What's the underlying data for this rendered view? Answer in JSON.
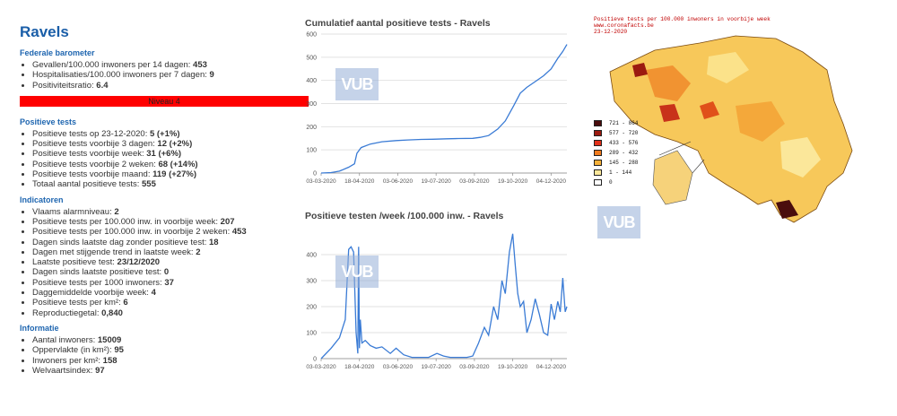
{
  "title": "Ravels",
  "watermark": "VUB",
  "federal": {
    "heading": "Federale barometer",
    "items": [
      {
        "label": "Gevallen/100.000 inwoners per 14 dagen: ",
        "value": "453"
      },
      {
        "label": "Hospitalisaties/100.000 inwoners per 7 dagen: ",
        "value": "9"
      },
      {
        "label": "Positiviteitsratio: ",
        "value": "6.4"
      }
    ],
    "niveau": "Niveau 4",
    "niveau_color": "#ff0000"
  },
  "positive_tests": {
    "heading": "Positieve tests",
    "items": [
      {
        "label": "Positieve tests op 23-12-2020: ",
        "value": "5 (+1%)"
      },
      {
        "label": "Positieve tests voorbije 3 dagen: ",
        "value": "12 (+2%)"
      },
      {
        "label": "Positieve tests voorbije week: ",
        "value": "31 (+6%)"
      },
      {
        "label": "Positieve tests voorbije 2 weken: ",
        "value": "68 (+14%)"
      },
      {
        "label": "Positieve tests voorbije maand: ",
        "value": "119 (+27%)"
      },
      {
        "label": "Totaal aantal positieve tests: ",
        "value": "555"
      }
    ]
  },
  "indicators": {
    "heading": "Indicatoren",
    "items": [
      {
        "label": "Vlaams alarmniveau: ",
        "value": "2"
      },
      {
        "label": "Positieve tests per 100.000 inw. in voorbije week: ",
        "value": "207"
      },
      {
        "label": "Positieve tests per 100.000 inw. in voorbije 2 weken: ",
        "value": "453"
      },
      {
        "label": "Dagen sinds laatste dag zonder positieve test: ",
        "value": "18"
      },
      {
        "label": "Dagen met stijgende trend in laatste week: ",
        "value": "2"
      },
      {
        "label": "Laatste positieve test: ",
        "value": "23/12/2020"
      },
      {
        "label": "Dagen sinds laatste positieve test: ",
        "value": "0"
      },
      {
        "label": "Positieve tests per 1000 inwoners: ",
        "value": "37"
      },
      {
        "label": "Daggemiddelde voorbije week: ",
        "value": "4"
      },
      {
        "label": "Positieve tests per km²: ",
        "value": "6"
      },
      {
        "label": "Reproductiegetal: ",
        "value": "0,840"
      }
    ]
  },
  "info": {
    "heading": "Informatie",
    "items": [
      {
        "label": "Aantal inwoners: ",
        "value": "15009"
      },
      {
        "label": "Oppervlakte (in km²): ",
        "value": "95"
      },
      {
        "label": "Inwoners per km²: ",
        "value": "158"
      },
      {
        "label": "Welvaartsindex: ",
        "value": "97"
      }
    ]
  },
  "map": {
    "header_lines": [
      "Positieve tests per 100.000 inwoners in voorbije week",
      "www.coronafacts.be",
      "23-12-2020"
    ],
    "legend": [
      {
        "label": "721 - 864",
        "color": "#4a0d0d"
      },
      {
        "label": "577 - 720",
        "color": "#9b1a10"
      },
      {
        "label": "433 - 576",
        "color": "#e0301a"
      },
      {
        "label": "289 - 432",
        "color": "#f07b1e"
      },
      {
        "label": "145 - 288",
        "color": "#f6b13a"
      },
      {
        "label": "1 - 144",
        "color": "#fbe79a"
      },
      {
        "label": "0",
        "color": "#ffffff"
      }
    ]
  },
  "chart_data": [
    {
      "type": "line",
      "title": "Cumulatief aantal positieve tests - Ravels",
      "xlabel": "",
      "ylabel": "",
      "xlim": [
        "2020-03-03",
        "2020-12-23"
      ],
      "ylim": [
        0,
        600
      ],
      "yticks": [
        0,
        100,
        200,
        300,
        400,
        500,
        600
      ],
      "xticks": [
        "03-03-2020",
        "18-04-2020",
        "03-06-2020",
        "19-07-2020",
        "03-09-2020",
        "19-10-2020",
        "04-12-2020"
      ],
      "grid": true,
      "color": "#3a7bd5",
      "series": [
        {
          "x": [
            "2020-03-03",
            "2020-03-15",
            "2020-03-25",
            "2020-04-05",
            "2020-04-12",
            "2020-04-15",
            "2020-04-20",
            "2020-05-01",
            "2020-05-15",
            "2020-06-01",
            "2020-06-15",
            "2020-07-01",
            "2020-07-15",
            "2020-08-01",
            "2020-08-15",
            "2020-09-01",
            "2020-09-10",
            "2020-09-20",
            "2020-10-01",
            "2020-10-10",
            "2020-10-20",
            "2020-10-28",
            "2020-11-05",
            "2020-11-15",
            "2020-11-25",
            "2020-12-04",
            "2020-12-12",
            "2020-12-18",
            "2020-12-23"
          ],
          "y": [
            0,
            2,
            8,
            25,
            40,
            85,
            110,
            125,
            135,
            140,
            143,
            145,
            146,
            148,
            149,
            150,
            154,
            162,
            190,
            225,
            290,
            345,
            370,
            395,
            420,
            450,
            495,
            525,
            555
          ]
        }
      ]
    },
    {
      "type": "line",
      "title": "Positieve testen /week /100.000 inw. - Ravels",
      "xlabel": "",
      "ylabel": "",
      "xlim": [
        "2020-03-03",
        "2020-12-23"
      ],
      "ylim": [
        0,
        500
      ],
      "yticks": [
        0,
        100,
        200,
        300,
        400
      ],
      "xticks": [
        "03-03-2020",
        "18-04-2020",
        "03-06-2020",
        "19-07-2020",
        "03-09-2020",
        "19-10-2020",
        "04-12-2020"
      ],
      "grid": true,
      "color": "#3a7bd5",
      "series": [
        {
          "x": [
            "2020-03-03",
            "2020-03-15",
            "2020-03-25",
            "2020-04-01",
            "2020-04-05",
            "2020-04-08",
            "2020-04-11",
            "2020-04-14",
            "2020-04-16",
            "2020-04-17",
            "2020-04-18",
            "2020-04-19",
            "2020-04-21",
            "2020-04-25",
            "2020-05-01",
            "2020-05-08",
            "2020-05-15",
            "2020-05-25",
            "2020-06-01",
            "2020-06-10",
            "2020-06-20",
            "2020-07-01",
            "2020-07-10",
            "2020-07-20",
            "2020-07-28",
            "2020-08-05",
            "2020-08-15",
            "2020-08-25",
            "2020-09-01",
            "2020-09-08",
            "2020-09-15",
            "2020-09-20",
            "2020-09-26",
            "2020-10-01",
            "2020-10-06",
            "2020-10-10",
            "2020-10-15",
            "2020-10-19",
            "2020-10-22",
            "2020-10-25",
            "2020-10-28",
            "2020-11-01",
            "2020-11-05",
            "2020-11-10",
            "2020-11-15",
            "2020-11-20",
            "2020-11-25",
            "2020-11-30",
            "2020-12-04",
            "2020-12-08",
            "2020-12-12",
            "2020-12-15",
            "2020-12-18",
            "2020-12-21",
            "2020-12-23"
          ],
          "y": [
            0,
            40,
            80,
            150,
            420,
            430,
            410,
            100,
            20,
            430,
            40,
            150,
            60,
            70,
            50,
            40,
            45,
            20,
            40,
            15,
            5,
            5,
            5,
            20,
            10,
            5,
            5,
            5,
            10,
            60,
            120,
            90,
            200,
            150,
            300,
            250,
            410,
            480,
            360,
            250,
            200,
            220,
            100,
            150,
            230,
            170,
            100,
            90,
            210,
            150,
            220,
            180,
            310,
            180,
            200
          ]
        }
      ]
    }
  ]
}
